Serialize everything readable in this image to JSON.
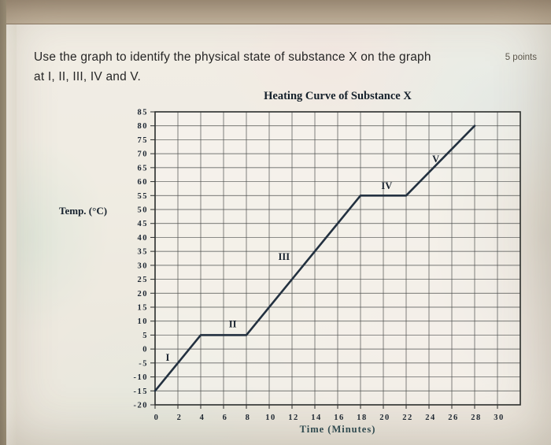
{
  "question": {
    "line1": "Use the graph to identify the physical state of substance X on the graph",
    "line2": "at I, II, III, IV and V.",
    "points": "5 points"
  },
  "colors": {
    "curve": "#233140",
    "grid": "#4d4f4e",
    "axis": "#2a2d2c",
    "tick_text": "#1d2733",
    "xlabel_text": "#2c4a52"
  },
  "chart_data": {
    "type": "line",
    "title": "Heating Curve of Substance X",
    "xlabel": "Time (Minutes)",
    "ylabel": "Temp. (°C)",
    "xlim": [
      0,
      30
    ],
    "x_grid_max": 32,
    "ylim": [
      -20,
      85
    ],
    "x_tick_step": 2,
    "y_tick_step": 5,
    "grid": true,
    "legend": "none",
    "series": [
      {
        "name": "heating curve of substance X",
        "points": [
          [
            0,
            -15
          ],
          [
            4,
            5
          ],
          [
            8,
            5
          ],
          [
            18,
            55
          ],
          [
            22,
            55
          ],
          [
            28,
            80
          ]
        ]
      }
    ],
    "annotations": [
      {
        "label": "I",
        "x": 1.1,
        "y": -3
      },
      {
        "label": "II",
        "x": 6.8,
        "y": 9
      },
      {
        "label": "III",
        "x": 11.3,
        "y": 33
      },
      {
        "label": "IV",
        "x": 20.3,
        "y": 58.5
      },
      {
        "label": "V",
        "x": 24.6,
        "y": 68
      }
    ]
  }
}
